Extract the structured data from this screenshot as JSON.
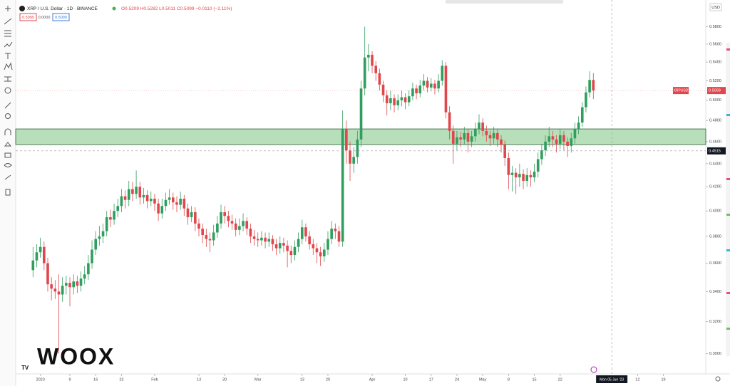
{
  "header": {
    "symbol": "XRP / U.S. Dollar · 1D · BINANCE",
    "ohlc_text": "O0.5209 H0.5282 L0.5011 C0.5099 −0.0110 (−2.11%)",
    "sell": "0.5099",
    "spread": "0.0000",
    "buy": "0.5099"
  },
  "watermark": "WOOX",
  "chart_data": {
    "type": "candlestick",
    "currency": "USD",
    "symbol_tag": "XRPUSD",
    "last_price": 0.5099,
    "colors": {
      "up": "#2f9e5e",
      "down": "#e0474c",
      "zone": "#4caf50"
    },
    "log_scale": true,
    "ylim": [
      0.288,
      0.605
    ],
    "yticks": [
      {
        "value": 0.3,
        "label": "0.3000"
      },
      {
        "value": 0.32,
        "label": "0.3200"
      },
      {
        "value": 0.34,
        "label": "0.3400"
      },
      {
        "value": 0.36,
        "label": "0.3600"
      },
      {
        "value": 0.38,
        "label": "0.3800"
      },
      {
        "value": 0.4,
        "label": "0.4000"
      },
      {
        "value": 0.42,
        "label": "0.4200"
      },
      {
        "value": 0.44,
        "label": "0.4400"
      },
      {
        "value": 0.46,
        "label": "0.4600"
      },
      {
        "value": 0.48,
        "label": "0.4800"
      },
      {
        "value": 0.5,
        "label": "0.5000"
      },
      {
        "value": 0.52,
        "label": "0.5200"
      },
      {
        "value": 0.54,
        "label": "0.5400"
      },
      {
        "value": 0.56,
        "label": "0.5600"
      },
      {
        "value": 0.58,
        "label": "0.5800"
      }
    ],
    "xlim": [
      -4.7,
      182.5
    ],
    "xticks": [
      {
        "value": 2,
        "label": "2023"
      },
      {
        "value": 10,
        "label": "9"
      },
      {
        "value": 17,
        "label": "16"
      },
      {
        "value": 24,
        "label": "23"
      },
      {
        "value": 33,
        "label": "Feb"
      },
      {
        "value": 45,
        "label": "13"
      },
      {
        "value": 52,
        "label": "20"
      },
      {
        "value": 61,
        "label": "Mar"
      },
      {
        "value": 73,
        "label": "13"
      },
      {
        "value": 80,
        "label": "20"
      },
      {
        "value": 92,
        "label": "Apr"
      },
      {
        "value": 101,
        "label": "10"
      },
      {
        "value": 108,
        "label": "17"
      },
      {
        "value": 115,
        "label": "24"
      },
      {
        "value": 122,
        "label": "May"
      },
      {
        "value": 129,
        "label": "8"
      },
      {
        "value": 136,
        "label": "15"
      },
      {
        "value": 143,
        "label": "22"
      },
      {
        "value": 164,
        "label": "12"
      },
      {
        "value": 171,
        "label": "19"
      }
    ],
    "zone": [
      0.4573,
      0.4719
    ],
    "crosshair_price": 0.4515,
    "crosshair_date": {
      "value": 157,
      "label": "Mon 05 Jun '23"
    },
    "candles": [
      [
        0.355,
        0.372,
        0.35,
        0.362
      ],
      [
        0.362,
        0.374,
        0.357,
        0.368
      ],
      [
        0.368,
        0.379,
        0.364,
        0.372
      ],
      [
        0.372,
        0.376,
        0.355,
        0.36
      ],
      [
        0.36,
        0.364,
        0.34,
        0.345
      ],
      [
        0.345,
        0.35,
        0.334,
        0.342
      ],
      [
        0.342,
        0.348,
        0.335,
        0.34
      ],
      [
        0.34,
        0.352,
        0.3,
        0.338
      ],
      [
        0.338,
        0.35,
        0.333,
        0.344
      ],
      [
        0.344,
        0.351,
        0.338,
        0.346
      ],
      [
        0.346,
        0.35,
        0.33,
        0.343
      ],
      [
        0.343,
        0.352,
        0.338,
        0.347
      ],
      [
        0.347,
        0.351,
        0.339,
        0.344
      ],
      [
        0.344,
        0.354,
        0.34,
        0.349
      ],
      [
        0.349,
        0.358,
        0.345,
        0.352
      ],
      [
        0.352,
        0.366,
        0.348,
        0.36
      ],
      [
        0.36,
        0.377,
        0.356,
        0.37
      ],
      [
        0.37,
        0.384,
        0.366,
        0.378
      ],
      [
        0.378,
        0.388,
        0.373,
        0.38
      ],
      [
        0.38,
        0.39,
        0.375,
        0.384
      ],
      [
        0.384,
        0.4,
        0.38,
        0.395
      ],
      [
        0.395,
        0.401,
        0.387,
        0.393
      ],
      [
        0.393,
        0.406,
        0.389,
        0.4
      ],
      [
        0.4,
        0.41,
        0.395,
        0.404
      ],
      [
        0.404,
        0.418,
        0.399,
        0.412
      ],
      [
        0.412,
        0.417,
        0.402,
        0.409
      ],
      [
        0.409,
        0.425,
        0.404,
        0.418
      ],
      [
        0.418,
        0.424,
        0.408,
        0.414
      ],
      [
        0.414,
        0.434,
        0.41,
        0.42
      ],
      [
        0.42,
        0.424,
        0.405,
        0.411
      ],
      [
        0.411,
        0.419,
        0.406,
        0.413
      ],
      [
        0.413,
        0.417,
        0.402,
        0.408
      ],
      [
        0.408,
        0.416,
        0.404,
        0.41
      ],
      [
        0.41,
        0.414,
        0.4,
        0.406
      ],
      [
        0.406,
        0.41,
        0.392,
        0.398
      ],
      [
        0.398,
        0.41,
        0.394,
        0.404
      ],
      [
        0.404,
        0.415,
        0.4,
        0.409
      ],
      [
        0.409,
        0.418,
        0.405,
        0.411
      ],
      [
        0.411,
        0.415,
        0.401,
        0.407
      ],
      [
        0.407,
        0.412,
        0.399,
        0.405
      ],
      [
        0.405,
        0.416,
        0.401,
        0.41
      ],
      [
        0.41,
        0.413,
        0.396,
        0.402
      ],
      [
        0.402,
        0.406,
        0.389,
        0.395
      ],
      [
        0.395,
        0.404,
        0.391,
        0.399
      ],
      [
        0.399,
        0.403,
        0.384,
        0.39
      ],
      [
        0.39,
        0.394,
        0.38,
        0.386
      ],
      [
        0.386,
        0.39,
        0.375,
        0.381
      ],
      [
        0.381,
        0.386,
        0.372,
        0.378
      ],
      [
        0.378,
        0.383,
        0.368,
        0.377
      ],
      [
        0.377,
        0.389,
        0.373,
        0.383
      ],
      [
        0.383,
        0.396,
        0.379,
        0.39
      ],
      [
        0.39,
        0.405,
        0.386,
        0.399
      ],
      [
        0.399,
        0.404,
        0.39,
        0.396
      ],
      [
        0.396,
        0.4,
        0.387,
        0.392
      ],
      [
        0.392,
        0.397,
        0.385,
        0.39
      ],
      [
        0.39,
        0.394,
        0.38,
        0.385
      ],
      [
        0.385,
        0.394,
        0.381,
        0.388
      ],
      [
        0.388,
        0.398,
        0.384,
        0.392
      ],
      [
        0.392,
        0.395,
        0.381,
        0.386
      ],
      [
        0.386,
        0.39,
        0.375,
        0.38
      ],
      [
        0.38,
        0.385,
        0.373,
        0.378
      ],
      [
        0.378,
        0.383,
        0.372,
        0.377
      ],
      [
        0.377,
        0.384,
        0.373,
        0.379
      ],
      [
        0.379,
        0.383,
        0.371,
        0.376
      ],
      [
        0.376,
        0.383,
        0.372,
        0.378
      ],
      [
        0.378,
        0.381,
        0.369,
        0.374
      ],
      [
        0.374,
        0.378,
        0.366,
        0.371
      ],
      [
        0.371,
        0.38,
        0.367,
        0.375
      ],
      [
        0.375,
        0.379,
        0.368,
        0.373
      ],
      [
        0.373,
        0.377,
        0.357,
        0.369
      ],
      [
        0.369,
        0.373,
        0.36,
        0.366
      ],
      [
        0.366,
        0.377,
        0.362,
        0.372
      ],
      [
        0.372,
        0.383,
        0.368,
        0.378
      ],
      [
        0.378,
        0.393,
        0.374,
        0.387
      ],
      [
        0.387,
        0.39,
        0.376,
        0.38
      ],
      [
        0.38,
        0.384,
        0.37,
        0.374
      ],
      [
        0.374,
        0.378,
        0.366,
        0.371
      ],
      [
        0.371,
        0.375,
        0.36,
        0.368
      ],
      [
        0.368,
        0.372,
        0.358,
        0.365
      ],
      [
        0.365,
        0.375,
        0.361,
        0.37
      ],
      [
        0.37,
        0.384,
        0.366,
        0.378
      ],
      [
        0.378,
        0.392,
        0.374,
        0.386
      ],
      [
        0.386,
        0.39,
        0.378,
        0.384
      ],
      [
        0.384,
        0.388,
        0.372,
        0.376
      ],
      [
        0.376,
        0.49,
        0.372,
        0.472
      ],
      [
        0.472,
        0.48,
        0.44,
        0.452
      ],
      [
        0.452,
        0.46,
        0.425,
        0.44
      ],
      [
        0.44,
        0.455,
        0.432,
        0.446
      ],
      [
        0.446,
        0.47,
        0.44,
        0.462
      ],
      [
        0.462,
        0.52,
        0.455,
        0.512
      ],
      [
        0.512,
        0.58,
        0.505,
        0.545
      ],
      [
        0.545,
        0.56,
        0.53,
        0.548
      ],
      [
        0.548,
        0.552,
        0.528,
        0.536
      ],
      [
        0.536,
        0.541,
        0.52,
        0.528
      ],
      [
        0.528,
        0.533,
        0.51,
        0.516
      ],
      [
        0.516,
        0.52,
        0.498,
        0.505
      ],
      [
        0.505,
        0.51,
        0.485,
        0.497
      ],
      [
        0.497,
        0.51,
        0.49,
        0.502
      ],
      [
        0.502,
        0.506,
        0.488,
        0.495
      ],
      [
        0.495,
        0.506,
        0.49,
        0.5
      ],
      [
        0.5,
        0.51,
        0.494,
        0.503
      ],
      [
        0.503,
        0.507,
        0.491,
        0.498
      ],
      [
        0.498,
        0.51,
        0.494,
        0.504
      ],
      [
        0.504,
        0.518,
        0.5,
        0.512
      ],
      [
        0.512,
        0.516,
        0.501,
        0.507
      ],
      [
        0.507,
        0.521,
        0.503,
        0.515
      ],
      [
        0.515,
        0.527,
        0.51,
        0.52
      ],
      [
        0.52,
        0.524,
        0.508,
        0.513
      ],
      [
        0.513,
        0.523,
        0.509,
        0.517
      ],
      [
        0.517,
        0.521,
        0.506,
        0.512
      ],
      [
        0.512,
        0.527,
        0.508,
        0.52
      ],
      [
        0.52,
        0.542,
        0.515,
        0.536
      ],
      [
        0.536,
        0.54,
        0.482,
        0.488
      ],
      [
        0.488,
        0.494,
        0.462,
        0.47
      ],
      [
        0.47,
        0.475,
        0.44,
        0.458
      ],
      [
        0.458,
        0.47,
        0.452,
        0.464
      ],
      [
        0.464,
        0.469,
        0.455,
        0.462
      ],
      [
        0.462,
        0.474,
        0.457,
        0.468
      ],
      [
        0.468,
        0.472,
        0.45,
        0.46
      ],
      [
        0.46,
        0.47,
        0.455,
        0.465
      ],
      [
        0.465,
        0.478,
        0.46,
        0.472
      ],
      [
        0.472,
        0.486,
        0.467,
        0.478
      ],
      [
        0.478,
        0.482,
        0.465,
        0.47
      ],
      [
        0.47,
        0.475,
        0.46,
        0.466
      ],
      [
        0.466,
        0.47,
        0.456,
        0.463
      ],
      [
        0.463,
        0.474,
        0.458,
        0.468
      ],
      [
        0.468,
        0.472,
        0.455,
        0.462
      ],
      [
        0.462,
        0.466,
        0.45,
        0.457
      ],
      [
        0.457,
        0.461,
        0.438,
        0.445
      ],
      [
        0.445,
        0.45,
        0.418,
        0.43
      ],
      [
        0.43,
        0.438,
        0.416,
        0.432
      ],
      [
        0.432,
        0.436,
        0.414,
        0.428
      ],
      [
        0.428,
        0.44,
        0.42,
        0.431
      ],
      [
        0.431,
        0.435,
        0.418,
        0.425
      ],
      [
        0.425,
        0.436,
        0.42,
        0.43
      ],
      [
        0.43,
        0.434,
        0.42,
        0.428
      ],
      [
        0.428,
        0.44,
        0.424,
        0.433
      ],
      [
        0.433,
        0.45,
        0.428,
        0.444
      ],
      [
        0.444,
        0.458,
        0.439,
        0.452
      ],
      [
        0.452,
        0.466,
        0.447,
        0.46
      ],
      [
        0.46,
        0.474,
        0.455,
        0.465
      ],
      [
        0.465,
        0.47,
        0.455,
        0.462
      ],
      [
        0.462,
        0.466,
        0.45,
        0.458
      ],
      [
        0.458,
        0.472,
        0.453,
        0.466
      ],
      [
        0.466,
        0.47,
        0.452,
        0.46
      ],
      [
        0.46,
        0.464,
        0.446,
        0.456
      ],
      [
        0.456,
        0.468,
        0.45,
        0.463
      ],
      [
        0.463,
        0.478,
        0.458,
        0.472
      ],
      [
        0.472,
        0.484,
        0.467,
        0.478
      ],
      [
        0.478,
        0.498,
        0.474,
        0.493
      ],
      [
        0.493,
        0.514,
        0.488,
        0.508
      ],
      [
        0.508,
        0.53,
        0.503,
        0.5209
      ],
      [
        0.5209,
        0.5282,
        0.5011,
        0.5099
      ]
    ]
  }
}
